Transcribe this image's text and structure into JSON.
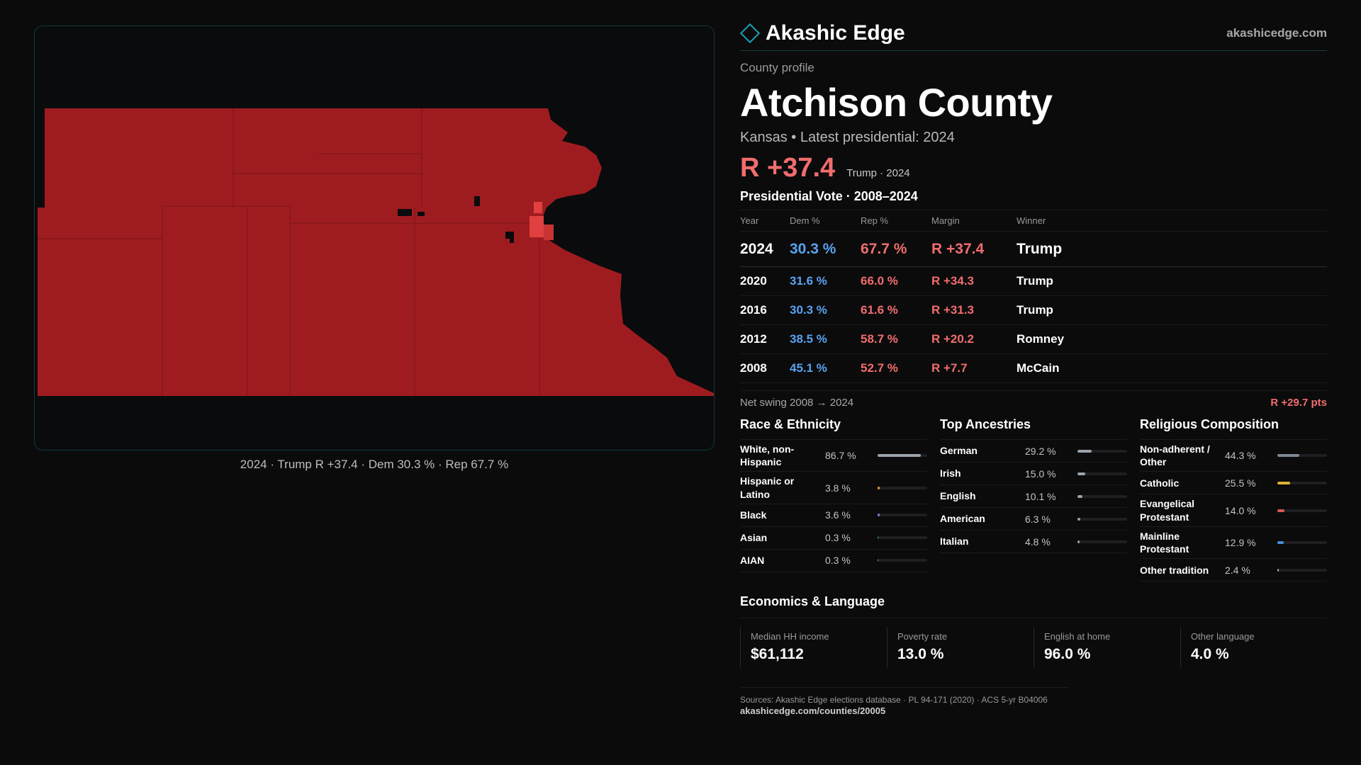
{
  "brand": {
    "name": "Akashic Edge",
    "site": "akashicedge.com",
    "accent": "#1aa2b4"
  },
  "profile": {
    "eyebrow": "County profile",
    "title": "Atchison County",
    "subtitle": "Kansas • Latest presidential: 2024",
    "margin": "R +37.4",
    "margin_note": "Trump · 2024"
  },
  "map": {
    "caption": "2024 · Trump R +37.4 · Dem 30.3 % · Rep 67.7 %",
    "fill_color": "#9e1c20",
    "highlight_color": "#e14040"
  },
  "votes": {
    "title": "Presidential Vote · 2008–2024",
    "headers": {
      "year": "Year",
      "dem": "Dem %",
      "rep": "Rep %",
      "margin": "Margin",
      "winner": "Winner"
    },
    "rows": [
      {
        "year": "2024",
        "dem": "30.3 %",
        "rep": "67.7 %",
        "margin": "R +37.4",
        "winner": "Trump"
      },
      {
        "year": "2020",
        "dem": "31.6 %",
        "rep": "66.0 %",
        "margin": "R +34.3",
        "winner": "Trump"
      },
      {
        "year": "2016",
        "dem": "30.3 %",
        "rep": "61.6 %",
        "margin": "R +31.3",
        "winner": "Trump"
      },
      {
        "year": "2012",
        "dem": "38.5 %",
        "rep": "58.7 %",
        "margin": "R +20.2",
        "winner": "Romney"
      },
      {
        "year": "2008",
        "dem": "45.1 %",
        "rep": "52.7 %",
        "margin": "R +7.7",
        "winner": "McCain"
      }
    ],
    "swing_label": "Net swing 2008 → 2024",
    "swing_value": "R +29.7 pts"
  },
  "race": {
    "title": "Race & Ethnicity",
    "items": [
      {
        "label": "White, non-Hispanic",
        "value": "86.7 %",
        "pct": 86.7,
        "color": "#9aa3ad"
      },
      {
        "label": "Hispanic or Latino",
        "value": "3.8 %",
        "pct": 3.8,
        "color": "#e0a030"
      },
      {
        "label": "Black",
        "value": "3.6 %",
        "pct": 3.6,
        "color": "#8a7fd8"
      },
      {
        "label": "Asian",
        "value": "0.3 %",
        "pct": 0.3,
        "color": "#3fb6a8"
      },
      {
        "label": "AIAN",
        "value": "0.3 %",
        "pct": 0.3,
        "color": "#d07a40"
      }
    ]
  },
  "ancestry": {
    "title": "Top Ancestries",
    "items": [
      {
        "label": "German",
        "value": "29.2 %",
        "pct": 29.2,
        "color": "#9aa3ad"
      },
      {
        "label": "Irish",
        "value": "15.0 %",
        "pct": 15.0,
        "color": "#9aa3ad"
      },
      {
        "label": "English",
        "value": "10.1 %",
        "pct": 10.1,
        "color": "#9aa3ad"
      },
      {
        "label": "American",
        "value": "6.3 %",
        "pct": 6.3,
        "color": "#9aa3ad"
      },
      {
        "label": "Italian",
        "value": "4.8 %",
        "pct": 4.8,
        "color": "#9aa3ad"
      }
    ]
  },
  "religion": {
    "title": "Religious Composition",
    "items": [
      {
        "label": "Non-adherent / Other",
        "value": "44.3 %",
        "pct": 44.3,
        "color": "#7f8894"
      },
      {
        "label": "Catholic",
        "value": "25.5 %",
        "pct": 25.5,
        "color": "#e0b030"
      },
      {
        "label": "Evangelical Protestant",
        "value": "14.0 %",
        "pct": 14.0,
        "color": "#d85a5a"
      },
      {
        "label": "Mainline Protestant",
        "value": "12.9 %",
        "pct": 12.9,
        "color": "#4a8ee0"
      },
      {
        "label": "Other tradition",
        "value": "2.4 %",
        "pct": 2.4,
        "color": "#b0b0b4"
      }
    ]
  },
  "economics": {
    "title": "Economics & Language",
    "cards": [
      {
        "label": "Median HH income",
        "value": "$61,112"
      },
      {
        "label": "Poverty rate",
        "value": "13.0 %"
      },
      {
        "label": "English at home",
        "value": "96.0 %"
      },
      {
        "label": "Other language",
        "value": "4.0 %"
      }
    ]
  },
  "sources": {
    "text": "Sources: Akashic Edge elections database · PL 94-171 (2020) · ACS 5-yr B04006",
    "url": "akashicedge.com/counties/20005"
  }
}
